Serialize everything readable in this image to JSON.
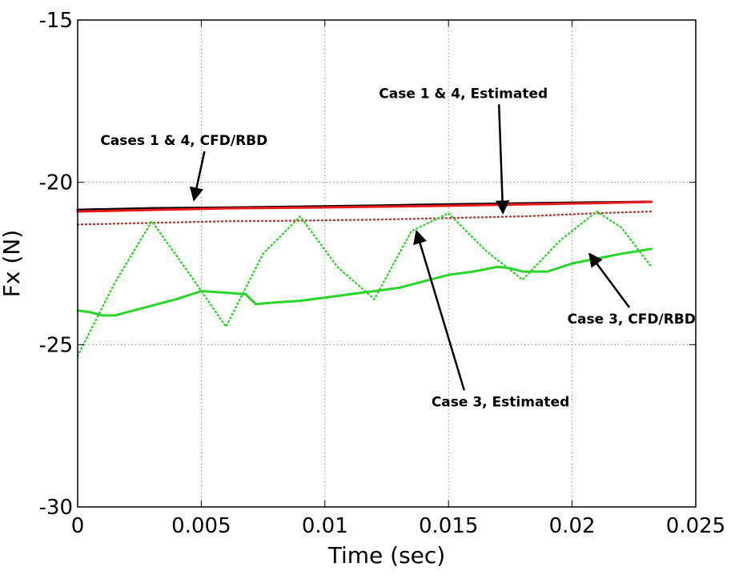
{
  "chart_data": {
    "type": "line",
    "title": "",
    "xlabel": "Time (sec)",
    "ylabel": "Fx (N)",
    "xlim": [
      0,
      0.025
    ],
    "ylim": [
      -30,
      -15
    ],
    "x_ticks": [
      0,
      0.005,
      0.01,
      0.015,
      0.02,
      0.025
    ],
    "x_tick_labels": [
      "0",
      "0.005",
      "0.01",
      "0.015",
      "0.02",
      "0.025"
    ],
    "y_ticks": [
      -30,
      -25,
      -20,
      -15
    ],
    "y_tick_labels": [
      "-30",
      "-25",
      "-20",
      "-15"
    ],
    "grid": true,
    "series": [
      {
        "color": "#000000",
        "style": "solid",
        "x": [
          0,
          0.003,
          0.006,
          0.009,
          0.012,
          0.015,
          0.018,
          0.021,
          0.0232
        ],
        "y": [
          -20.85,
          -20.8,
          -20.78,
          -20.75,
          -20.72,
          -20.68,
          -20.65,
          -20.62,
          -20.6
        ]
      },
      {
        "color": "#e8191c",
        "style": "solid",
        "x": [
          0,
          0.003,
          0.006,
          0.009,
          0.012,
          0.015,
          0.018,
          0.021,
          0.0232
        ],
        "y": [
          -20.9,
          -20.85,
          -20.8,
          -20.78,
          -20.75,
          -20.72,
          -20.68,
          -20.64,
          -20.6
        ]
      },
      {
        "color": "#b04040",
        "style": "dotted",
        "x": [
          0,
          0.003,
          0.006,
          0.009,
          0.012,
          0.015,
          0.018,
          0.021,
          0.0232
        ],
        "y": [
          -21.3,
          -21.25,
          -21.2,
          -21.18,
          -21.15,
          -21.1,
          -21.05,
          -20.95,
          -20.9
        ]
      },
      {
        "color": "#2ad52a",
        "style": "solid",
        "x": [
          0,
          0.0005,
          0.001,
          0.0015,
          0.002,
          0.003,
          0.004,
          0.005,
          0.006,
          0.0068,
          0.0072,
          0.008,
          0.009,
          0.01,
          0.011,
          0.012,
          0.013,
          0.014,
          0.015,
          0.016,
          0.017,
          0.0175,
          0.018,
          0.019,
          0.02,
          0.021,
          0.022,
          0.0232
        ],
        "y": [
          -23.95,
          -24.0,
          -24.1,
          -24.1,
          -24.0,
          -23.8,
          -23.6,
          -23.35,
          -23.4,
          -23.45,
          -23.75,
          -23.7,
          -23.65,
          -23.55,
          -23.45,
          -23.35,
          -23.25,
          -23.05,
          -22.85,
          -22.75,
          -22.6,
          -22.65,
          -22.75,
          -22.75,
          -22.5,
          -22.35,
          -22.2,
          -22.05
        ]
      },
      {
        "color": "#33d633",
        "style": "dotted",
        "x": [
          0,
          0.0015,
          0.003,
          0.0045,
          0.006,
          0.0075,
          0.009,
          0.0105,
          0.012,
          0.0135,
          0.015,
          0.0165,
          0.018,
          0.0195,
          0.021,
          0.022,
          0.0232
        ],
        "y": [
          -25.35,
          -23.1,
          -21.2,
          -22.8,
          -24.45,
          -22.2,
          -21.05,
          -22.6,
          -23.6,
          -21.5,
          -20.95,
          -22.1,
          -23.0,
          -21.8,
          -20.9,
          -21.4,
          -22.6
        ]
      }
    ],
    "annotations": [
      {
        "text": "Case 1 & 4, Estimated",
        "x": 0.0156,
        "y": -17.4,
        "arrow_to": [
          0.0172,
          -20.95
        ]
      },
      {
        "text": "Cases 1 & 4, CFD/RBD",
        "x": 0.0043,
        "y": -18.85,
        "arrow_to": [
          0.0047,
          -20.55
        ]
      },
      {
        "text": "Case 3, Estimated",
        "x": 0.0171,
        "y": -26.9,
        "arrow_to": [
          0.0137,
          -21.5
        ]
      },
      {
        "text": "Case 3, CFD/RBD",
        "x": 0.0224,
        "y": -24.35,
        "arrow_to": [
          0.0207,
          -22.2
        ]
      }
    ]
  }
}
